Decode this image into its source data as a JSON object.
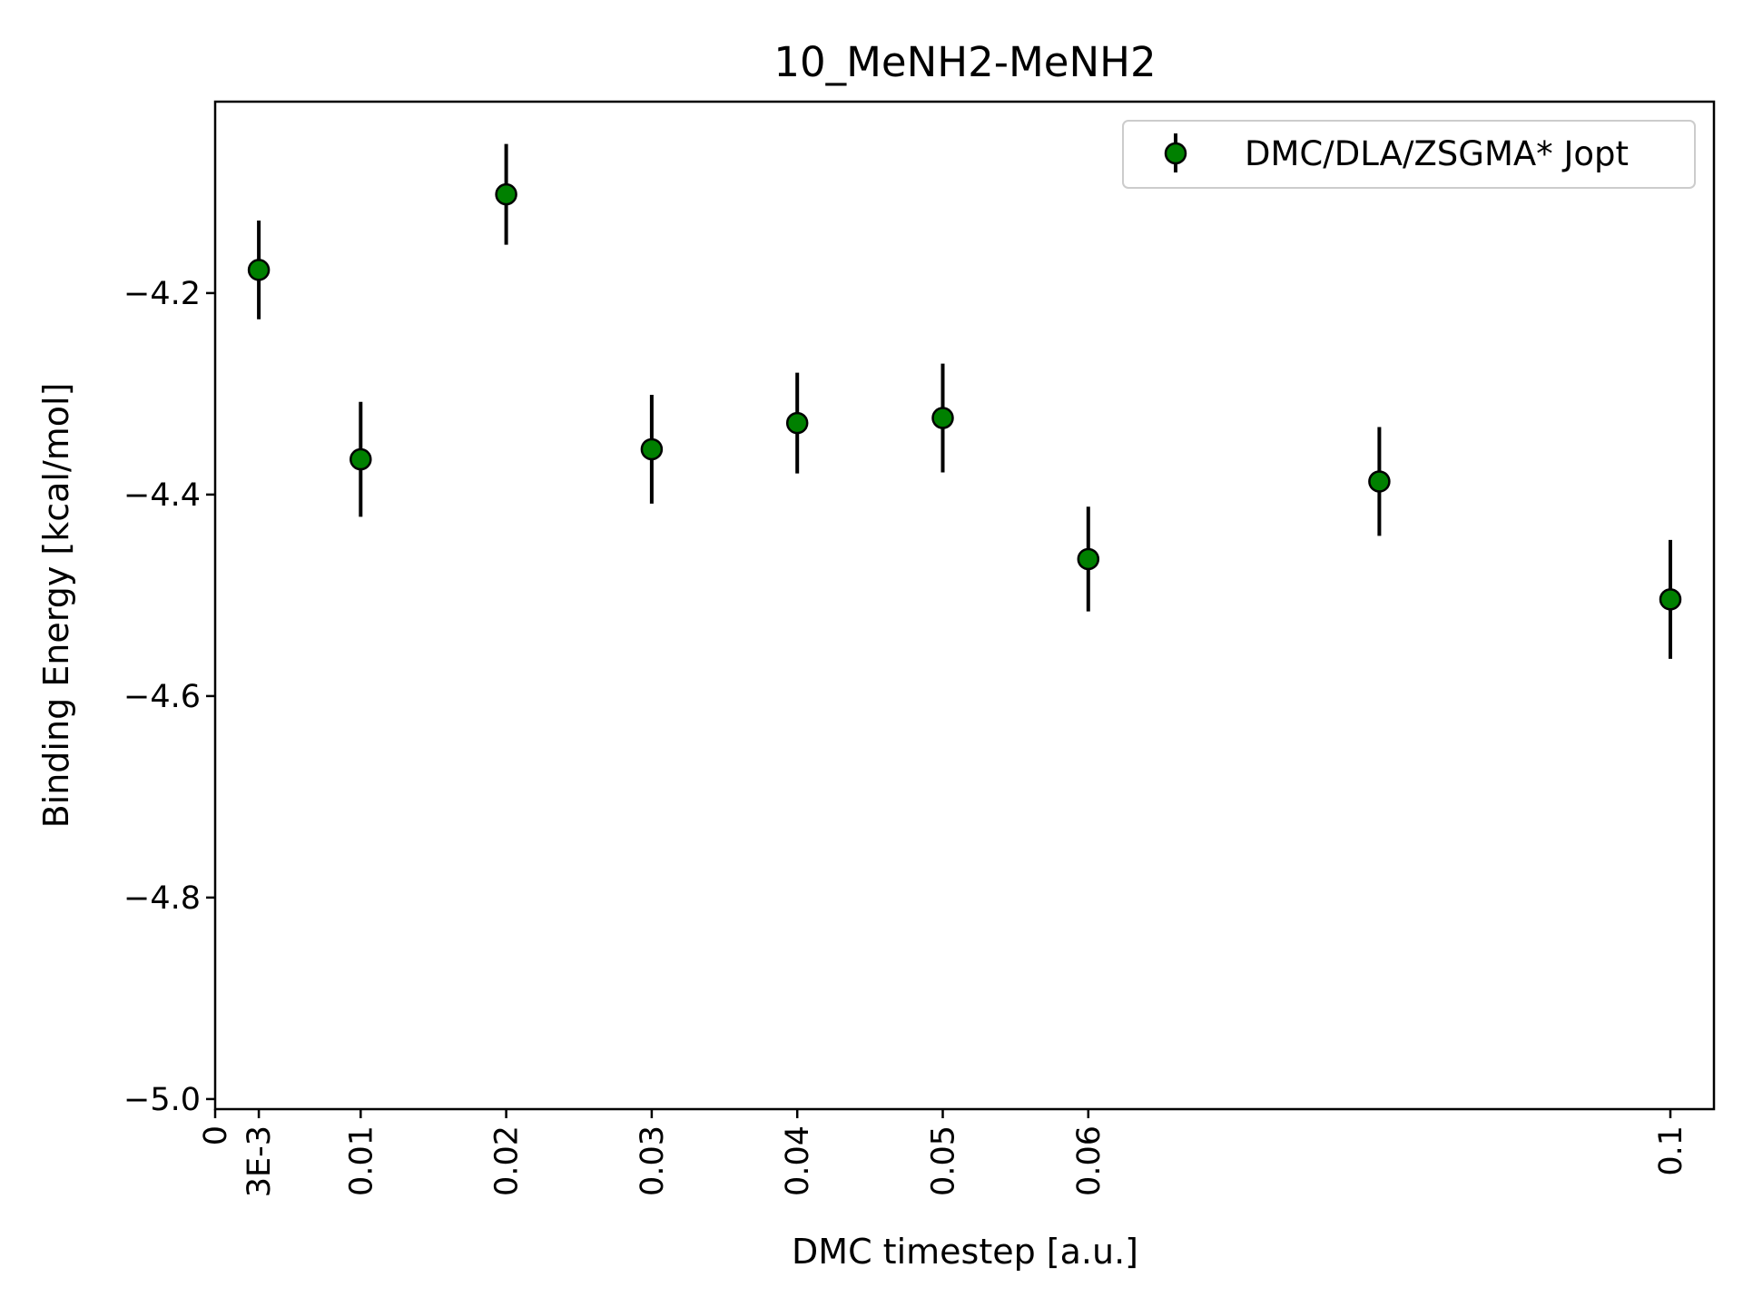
{
  "chart_data": {
    "type": "scatter",
    "title": "10_MeNH2-MeNH2",
    "xlabel": "DMC timestep [a.u.]",
    "ylabel": "Binding Energy [kcal/mol]",
    "xlim": [
      0,
      0.103
    ],
    "ylim": [
      -5.01,
      -4.01
    ],
    "x_ticks": [
      {
        "value": 0,
        "label": "0"
      },
      {
        "value": 0.003,
        "label": "3E-3"
      },
      {
        "value": 0.01,
        "label": "0.01"
      },
      {
        "value": 0.02,
        "label": "0.02"
      },
      {
        "value": 0.03,
        "label": "0.03"
      },
      {
        "value": 0.04,
        "label": "0.04"
      },
      {
        "value": 0.05,
        "label": "0.05"
      },
      {
        "value": 0.06,
        "label": "0.06"
      },
      {
        "value": 0.1,
        "label": "0.1"
      }
    ],
    "y_ticks": [
      {
        "value": -4.2,
        "label": "−4.2"
      },
      {
        "value": -4.4,
        "label": "−4.4"
      },
      {
        "value": -4.6,
        "label": "−4.6"
      },
      {
        "value": -4.8,
        "label": "−4.8"
      },
      {
        "value": -5.0,
        "label": "−5.0"
      }
    ],
    "grid": false,
    "legend_position": "top-right",
    "series": [
      {
        "name": "DMC/DLA/ZSGMA* Jopt",
        "color": "#008000",
        "error_color": "#000000",
        "points": [
          {
            "x": 0.003,
            "y": -4.177,
            "err": 0.049
          },
          {
            "x": 0.01,
            "y": -4.365,
            "err": 0.057
          },
          {
            "x": 0.02,
            "y": -4.102,
            "err": 0.05
          },
          {
            "x": 0.03,
            "y": -4.355,
            "err": 0.054
          },
          {
            "x": 0.04,
            "y": -4.329,
            "err": 0.05
          },
          {
            "x": 0.05,
            "y": -4.324,
            "err": 0.054
          },
          {
            "x": 0.06,
            "y": -4.464,
            "err": 0.052
          },
          {
            "x": 0.08,
            "y": -4.387,
            "err": 0.054
          },
          {
            "x": 0.1,
            "y": -4.504,
            "err": 0.059
          }
        ]
      }
    ]
  }
}
